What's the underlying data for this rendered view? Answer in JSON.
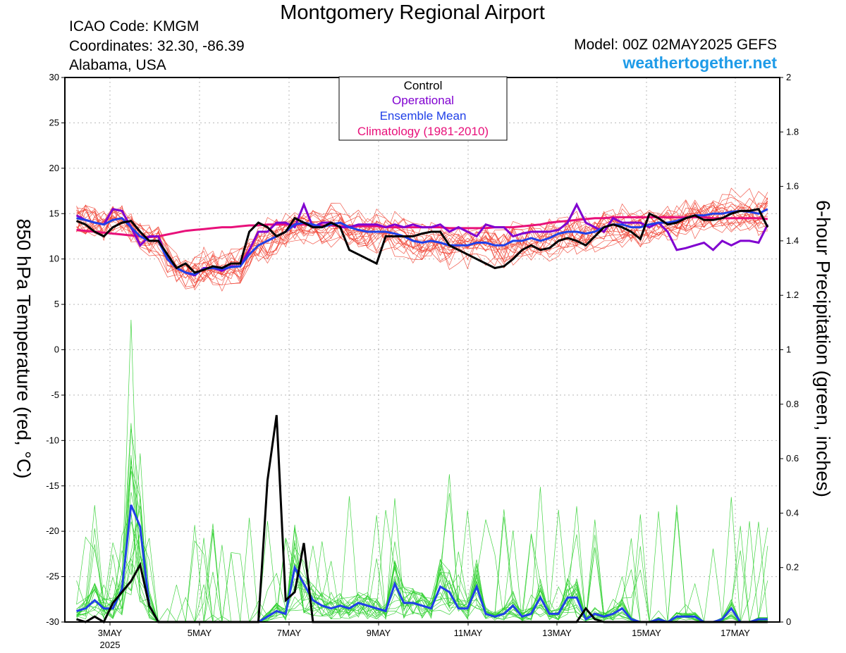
{
  "header": {
    "title": "Montgomery Regional Airport",
    "icao": "ICAO Code: KMGM",
    "coordinates": "Coordinates: 32.30, -86.39",
    "location": "Alabama, USA",
    "model": "Model: 00Z 02MAY2025 GEFS",
    "brand": "weathertogether.net",
    "brand_color": "#1e9be8"
  },
  "chart_data": {
    "type": "line",
    "ylabel_left": "850 hPa Temperature (red, °C)",
    "ylabel_right": "6-hour Precipitation (green, inches)",
    "ylim_left": [
      -30,
      30
    ],
    "ylim_right": [
      0,
      2
    ],
    "yticks_left": [
      "30",
      "25",
      "20",
      "15",
      "10",
      "5",
      "0",
      "-5",
      "-10",
      "-15",
      "-20",
      "-25",
      "-30"
    ],
    "yticks_right": [
      "2",
      "1.8",
      "1.6",
      "1.4",
      "1.2",
      "1",
      "0.8",
      "0.6",
      "0.4",
      "0.2",
      "0"
    ],
    "xticks": [
      "3MAY",
      "5MAY",
      "7MAY",
      "9MAY",
      "11MAY",
      "13MAY",
      "15MAY",
      "17MAY"
    ],
    "xtick_sub": "2025",
    "grid": true,
    "legend_placement": "top-center",
    "legend": [
      {
        "label": "Control",
        "color": "#000000"
      },
      {
        "label": "Operational",
        "color": "#8000d0"
      },
      {
        "label": "Ensemble Mean",
        "color": "#2040e8"
      },
      {
        "label": "Climatology (1981-2010)",
        "color": "#e8107a"
      }
    ],
    "colors": {
      "members_temp": "#f04030",
      "members_precip": "#30d030"
    },
    "time_axis": {
      "start": "2025-05-02 00Z",
      "step_hours": 6
    },
    "temperature": {
      "control": [
        14.2,
        13.8,
        13.0,
        12.5,
        13.5,
        14.0,
        14.2,
        13.0,
        12.0,
        12.0,
        10.5,
        9.0,
        9.5,
        8.5,
        8.8,
        9.2,
        9.0,
        9.5,
        9.5,
        13.0,
        14.0,
        13.5,
        12.5,
        13.0,
        14.5,
        14.0,
        13.5,
        13.5,
        14.0,
        13.5,
        11.0,
        10.5,
        10.0,
        9.5,
        12.5,
        12.5,
        12.5,
        12.5,
        12.8,
        13.0,
        13.0,
        11.5,
        11.0,
        10.5,
        10.0,
        9.5,
        9.0,
        9.2,
        10.0,
        11.0,
        11.5,
        11.0,
        11.2,
        12.0,
        12.3,
        12.0,
        11.5,
        12.5,
        13.5,
        13.8,
        13.5,
        13.0,
        12.2,
        15.0,
        14.5,
        13.8,
        14.0,
        14.5,
        14.8,
        14.3,
        14.3,
        14.5,
        15.0,
        15.3,
        15.3,
        15.5,
        13.5
      ],
      "operational": [
        14.8,
        14.3,
        14.0,
        13.8,
        15.5,
        15.3,
        13.5,
        11.5,
        12.5,
        12.5,
        10.0,
        9.0,
        8.5,
        8.2,
        9.0,
        9.0,
        8.7,
        9.2,
        9.2,
        11.0,
        13.0,
        13.0,
        14.0,
        14.0,
        13.5,
        16.0,
        13.5,
        14.0,
        14.0,
        13.5,
        13.5,
        13.8,
        13.8,
        13.8,
        13.5,
        13.8,
        13.5,
        13.8,
        13.5,
        13.5,
        13.8,
        13.0,
        13.5,
        13.0,
        12.5,
        13.8,
        13.5,
        13.5,
        12.5,
        12.8,
        13.0,
        13.0,
        13.0,
        13.2,
        14.0,
        16.0,
        14.0,
        13.5,
        13.0,
        14.5,
        14.0,
        14.0,
        14.0,
        13.5,
        14.0,
        13.0,
        11.0,
        11.2,
        11.5,
        11.8,
        11.0,
        12.0,
        11.5,
        12.0,
        12.0,
        11.8,
        13.8
      ],
      "ensemble_mean": [
        14.5,
        14.3,
        14.0,
        13.8,
        14.3,
        14.5,
        13.5,
        12.5,
        12.0,
        12.0,
        10.0,
        9.0,
        8.5,
        8.3,
        8.9,
        9.0,
        8.9,
        9.1,
        9.2,
        10.5,
        11.5,
        12.0,
        12.5,
        13.0,
        13.8,
        14.0,
        13.8,
        13.5,
        13.8,
        14.0,
        13.5,
        13.2,
        13.0,
        13.0,
        13.0,
        12.8,
        12.5,
        12.0,
        11.8,
        12.0,
        11.8,
        11.5,
        11.5,
        11.5,
        11.8,
        11.8,
        11.5,
        11.5,
        12.0,
        12.0,
        12.3,
        12.0,
        12.3,
        12.8,
        13.0,
        13.0,
        12.8,
        13.0,
        13.5,
        13.8,
        13.8,
        13.5,
        13.5,
        13.8,
        14.0,
        14.0,
        14.2,
        14.5,
        14.8,
        14.8,
        15.0,
        15.0,
        15.2,
        15.3,
        15.2,
        15.0,
        15.5
      ],
      "climatology": [
        13.2,
        13.1,
        13.0,
        12.9,
        12.8,
        12.7,
        12.6,
        12.5,
        12.4,
        12.5,
        12.7,
        12.9,
        13.1,
        13.2,
        13.3,
        13.4,
        13.5,
        13.5,
        13.6,
        13.7,
        13.7,
        13.8,
        13.8,
        13.8,
        13.8,
        13.8,
        13.7,
        13.7,
        13.7,
        13.6,
        13.6,
        13.6,
        13.6,
        13.6,
        13.5,
        13.5,
        13.5,
        13.5,
        13.5,
        13.5,
        13.5,
        13.4,
        13.4,
        13.4,
        13.4,
        13.4,
        13.5,
        13.5,
        13.5,
        13.6,
        13.7,
        13.8,
        14.0,
        14.1,
        14.2,
        14.3,
        14.4,
        14.5,
        14.5,
        14.6,
        14.6,
        14.6,
        14.6,
        14.6,
        14.6,
        14.6,
        14.6,
        14.6,
        14.6,
        14.6,
        14.5,
        14.5,
        14.5,
        14.5,
        14.5,
        14.5,
        14.4
      ]
    },
    "precipitation": {
      "control": [
        0.01,
        0.0,
        0.02,
        0.0,
        0.07,
        0.11,
        0.15,
        0.21,
        0.06,
        0.0,
        0.0,
        0.0,
        0.0,
        0.0,
        0.0,
        0.0,
        0.0,
        0.0,
        0.0,
        0.0,
        0.0,
        0.52,
        0.76,
        0.08,
        0.11,
        0.29,
        0.0,
        0.0,
        0.0,
        0.0,
        0.0,
        0.0,
        0.0,
        0.0,
        0.0,
        0.0,
        0.0,
        0.0,
        0.0,
        0.0,
        0.0,
        0.0,
        0.0,
        0.0,
        0.0,
        0.0,
        0.0,
        0.0,
        0.0,
        0.0,
        0.0,
        0.0,
        0.0,
        0.0,
        0.0,
        0.0,
        0.05,
        0.01,
        0.0,
        0.0,
        0.0,
        0.0,
        0.0,
        0.0,
        0.0,
        0.0,
        0.0,
        0.0,
        0.0,
        0.0,
        0.0,
        0.0,
        0.0,
        0.0,
        0.0,
        0.0,
        0.0
      ],
      "ensemble_mean": [
        0.04,
        0.05,
        0.08,
        0.05,
        0.05,
        0.12,
        0.43,
        0.35,
        0.06,
        0.0,
        0.0,
        0.0,
        0.0,
        0.0,
        0.0,
        0.0,
        0.0,
        0.0,
        0.0,
        0.0,
        0.0,
        0.02,
        0.04,
        0.03,
        0.2,
        0.14,
        0.08,
        0.06,
        0.05,
        0.06,
        0.05,
        0.07,
        0.06,
        0.05,
        0.04,
        0.14,
        0.07,
        0.07,
        0.06,
        0.05,
        0.13,
        0.11,
        0.05,
        0.05,
        0.13,
        0.03,
        0.02,
        0.03,
        0.06,
        0.02,
        0.03,
        0.09,
        0.03,
        0.03,
        0.09,
        0.09,
        0.01,
        0.03,
        0.02,
        0.03,
        0.05,
        0.01,
        0.0,
        0.0,
        0.01,
        0.0,
        0.02,
        0.02,
        0.02,
        0.0,
        0.0,
        0.01,
        0.05,
        0.0,
        0.0,
        0.01,
        0.01
      ]
    }
  }
}
